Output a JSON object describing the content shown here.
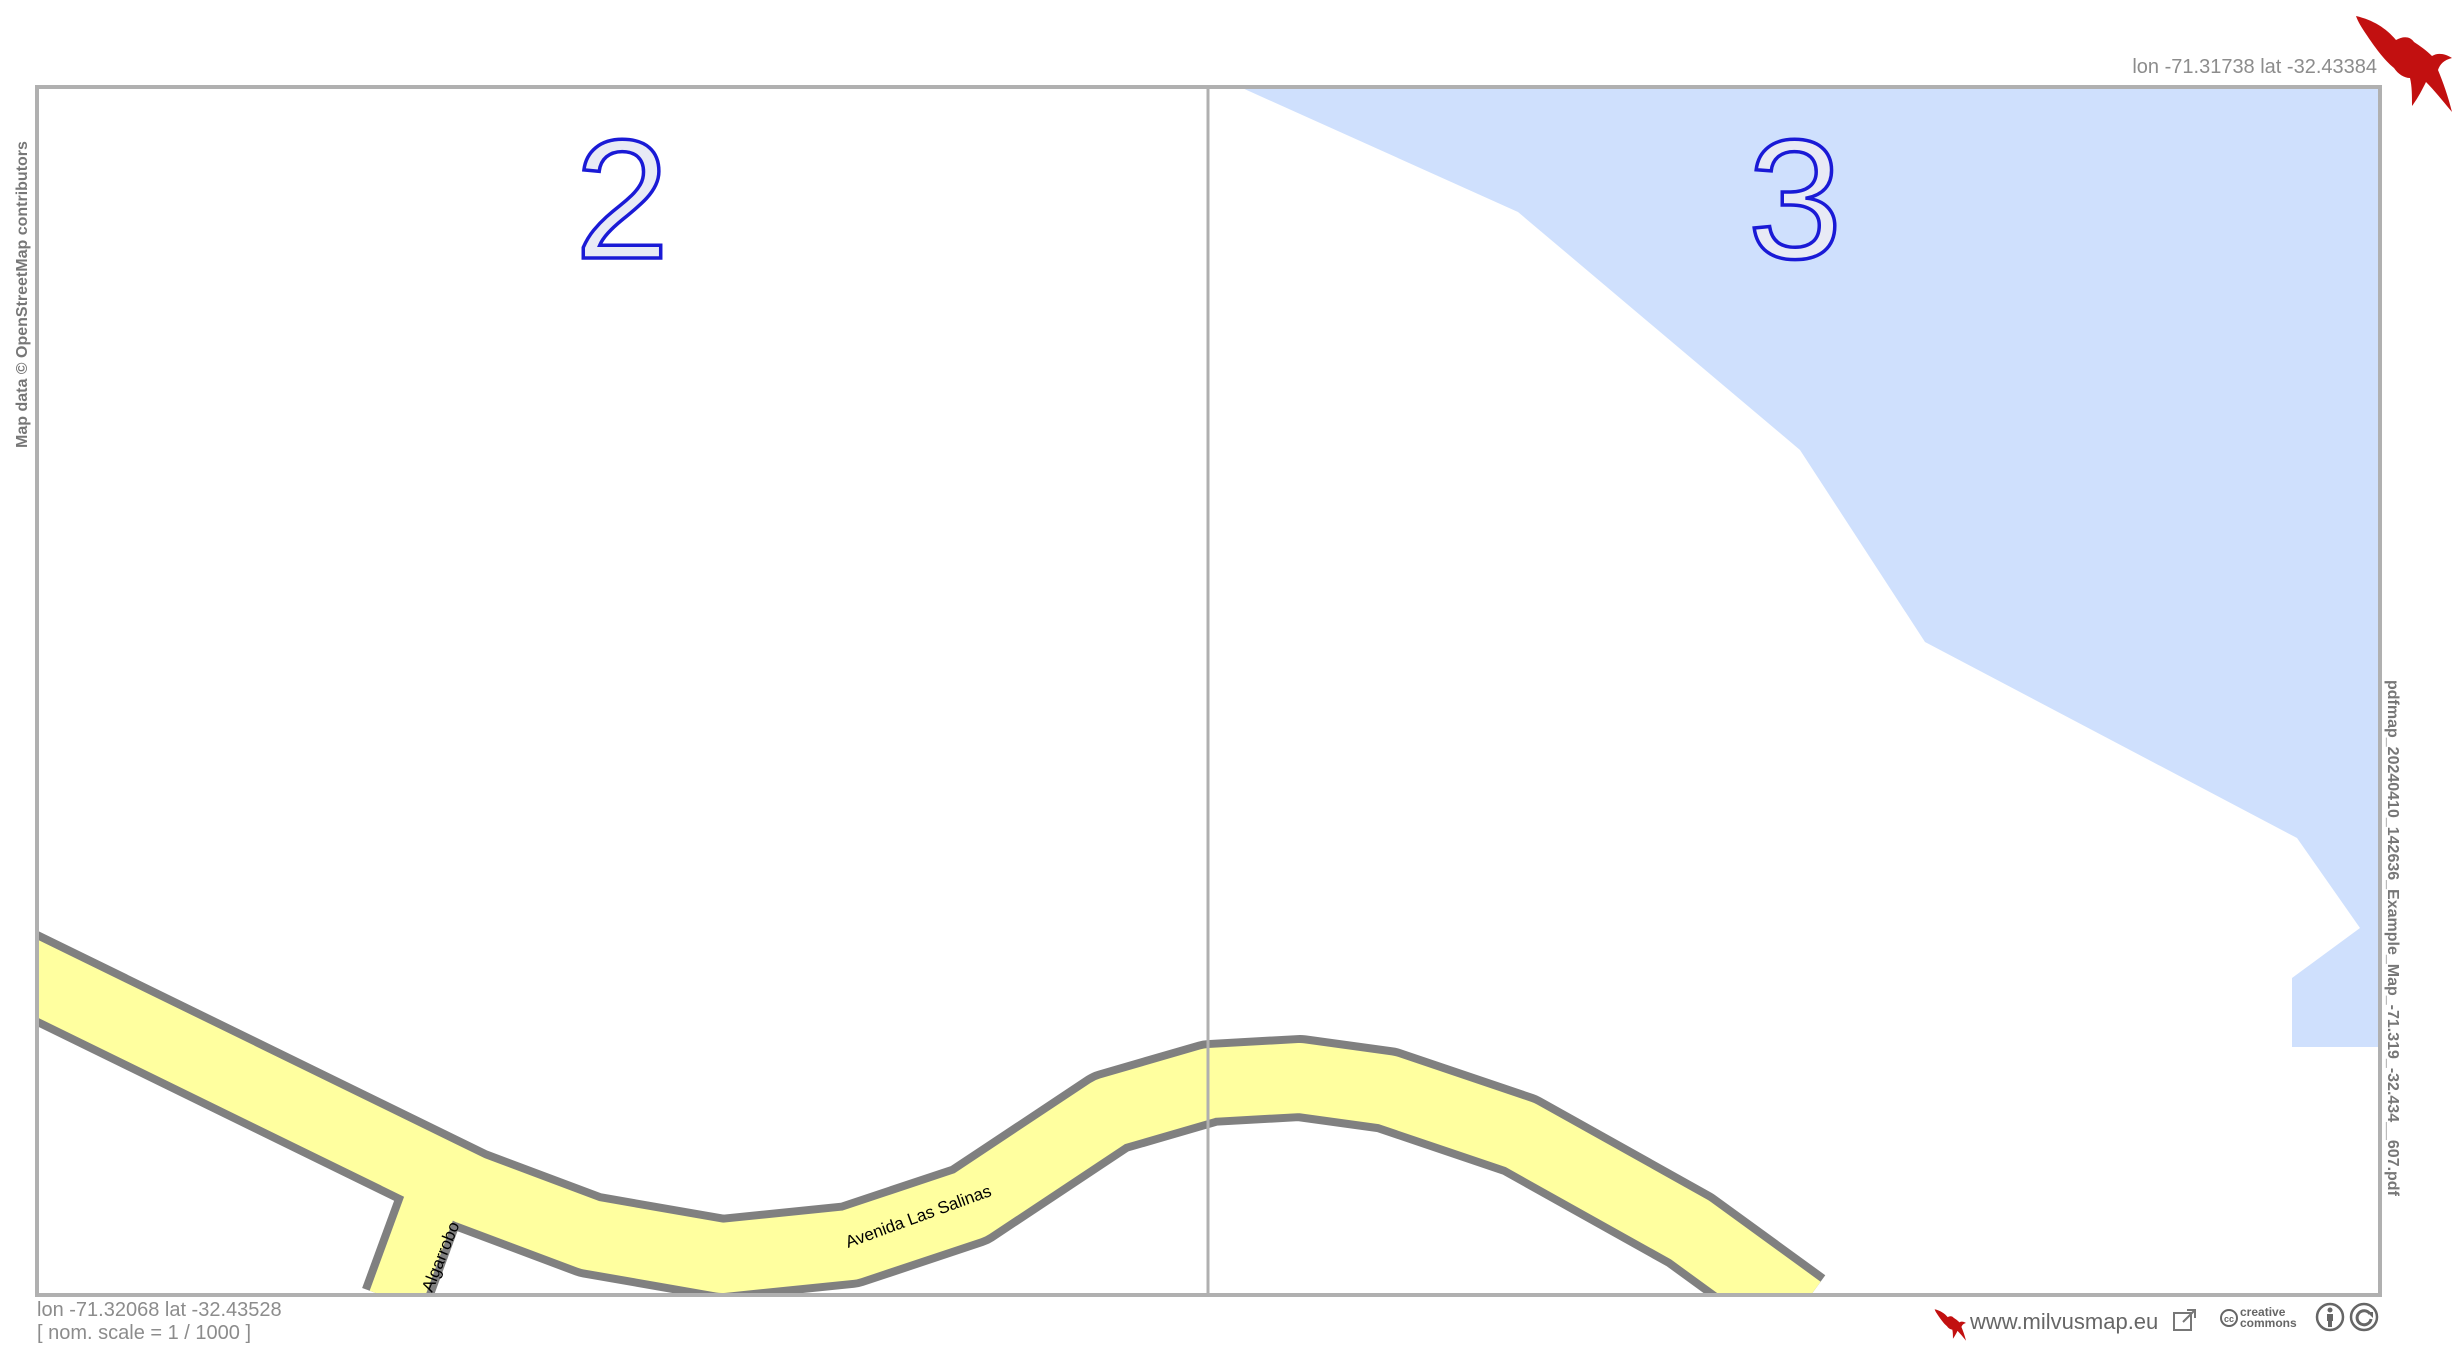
{
  "map": {
    "pages": [
      {
        "number": "2"
      },
      {
        "number": "3"
      }
    ],
    "streets": [
      {
        "name": "Avenida Las Salinas"
      },
      {
        "name": "Algarrobo"
      }
    ],
    "colors": {
      "water": "#cfe0fd",
      "road_fill": "#ffff9f",
      "road_casing": "#808080",
      "frame": "#b0b0b0",
      "page_number_stroke": "#1a1ad6",
      "page_number_fill": "#e8eaf5",
      "logo": "#c21010"
    }
  },
  "corners": {
    "top_right": "lon -71.31738 lat -32.43384",
    "bottom_left": "lon -71.32068 lat -32.43528",
    "scale": "[ nom. scale = 1 / 1000 ]"
  },
  "attribution": "Map data © OpenStreetMap contributors",
  "filename": "pdfmap_20240410_142636_Example_Map_-71.319_-32.434__607.pdf",
  "footer": {
    "website": "www.milvusmap.eu",
    "license_line1": "creative",
    "license_line2": "commons"
  },
  "icons": {
    "logo": "kite-bird-icon",
    "external_link": "external-link-icon",
    "cc": "cc-icon",
    "by": "cc-by-icon",
    "sa": "cc-sa-icon"
  }
}
